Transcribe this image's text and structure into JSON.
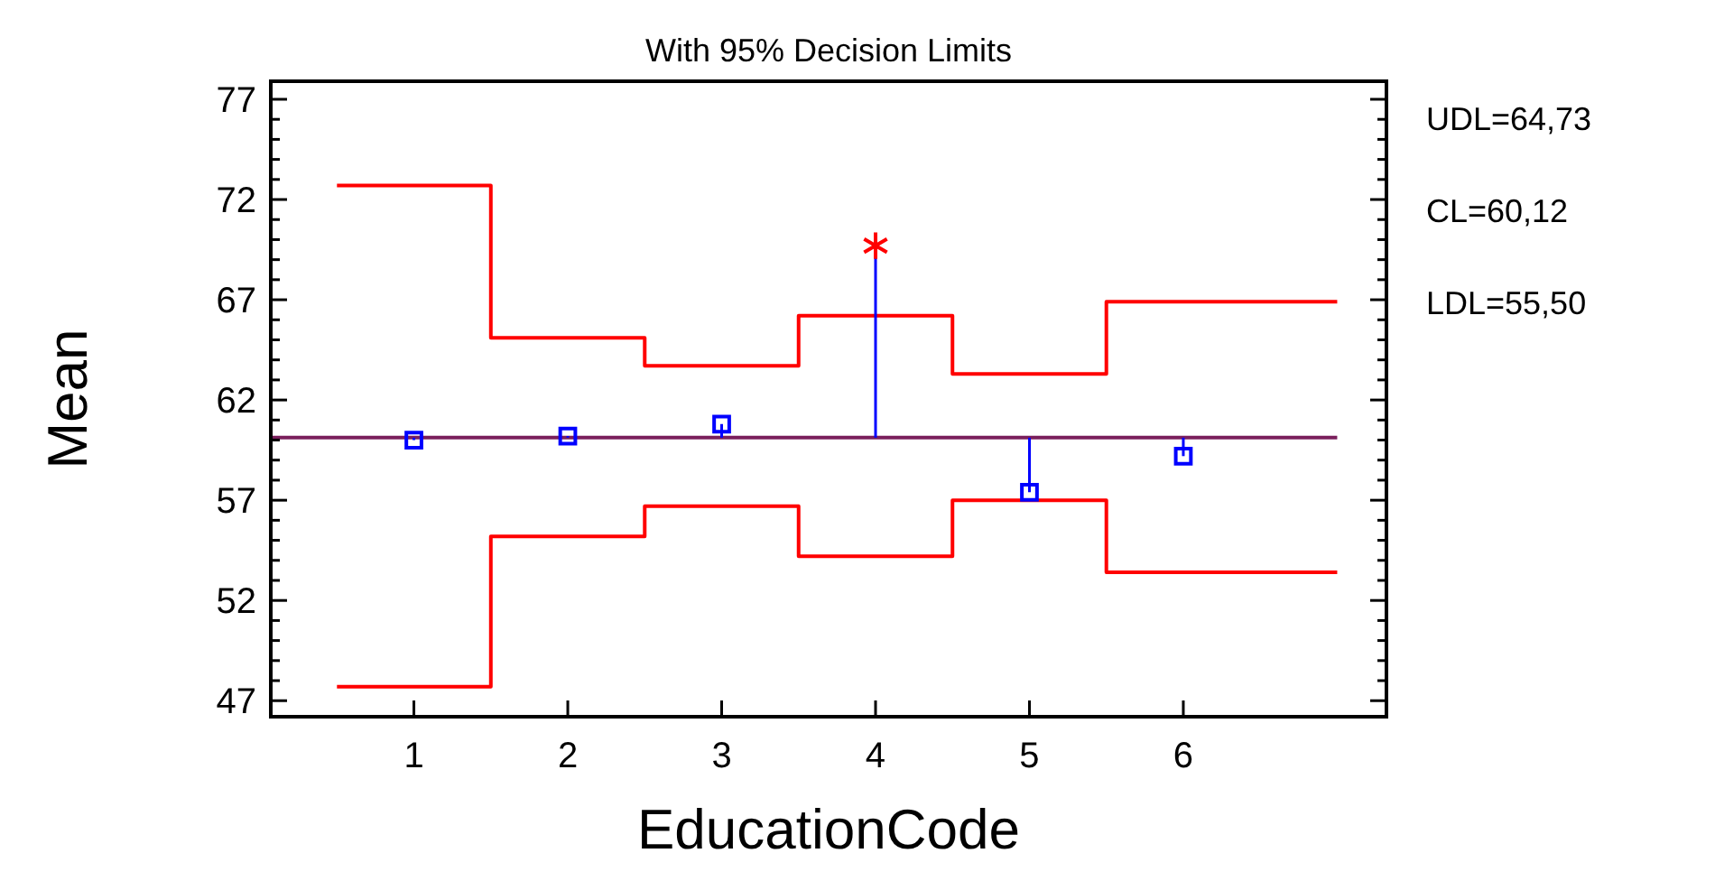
{
  "chart_data": {
    "type": "step",
    "title": "With 95% Decision Limits",
    "xlabel": "EducationCode",
    "ylabel": "Mean",
    "xlim": [
      0.07,
      7.32
    ],
    "xticks": [
      1,
      2,
      3,
      4,
      5,
      6
    ],
    "ylim": [
      46.2,
      77.9
    ],
    "yticks": [
      47,
      {
        "value": 48,
        "label": null
      },
      {
        "value": 49,
        "label": null
      },
      {
        "value": 50,
        "label": null
      },
      {
        "value": 51,
        "label": null
      },
      52,
      {
        "value": 53,
        "label": null
      },
      {
        "value": 54,
        "label": null
      },
      {
        "value": 55,
        "label": null
      },
      {
        "value": 56,
        "label": null
      },
      57,
      {
        "value": 58,
        "label": null
      },
      {
        "value": 59,
        "label": null
      },
      {
        "value": 60,
        "label": null
      },
      {
        "value": 61,
        "label": null
      },
      62,
      {
        "value": 63,
        "label": null
      },
      {
        "value": 64,
        "label": null
      },
      {
        "value": 65,
        "label": null
      },
      {
        "value": 66,
        "label": null
      },
      67,
      {
        "value": 68,
        "label": null
      },
      {
        "value": 69,
        "label": null
      },
      {
        "value": 70,
        "label": null
      },
      {
        "value": 71,
        "label": null
      },
      72,
      {
        "value": 73,
        "label": null
      },
      {
        "value": 74,
        "label": null
      },
      {
        "value": 75,
        "label": null
      },
      {
        "value": 76,
        "label": null
      },
      77
    ],
    "grid": false,
    "series": [
      {
        "color": "#ff0000",
        "x": [
          0.5,
          1.5,
          2.5,
          3.5,
          4.5,
          5.5,
          7.0
        ],
        "values": [
          72.7,
          65.1,
          63.7,
          66.2,
          63.3,
          66.9,
          66.9
        ]
      },
      {
        "color": "#ff0000",
        "x": [
          0.5,
          1.5,
          2.5,
          3.5,
          4.5,
          5.5,
          7.0
        ],
        "values": [
          47.7,
          55.2,
          56.7,
          54.2,
          57.0,
          53.4,
          53.4
        ]
      },
      {
        "type": "scatter",
        "color": "#0000ff",
        "marker": "square",
        "x": [
          1,
          2,
          3,
          5,
          6
        ],
        "values": [
          60.0,
          60.2,
          60.8,
          57.4,
          59.2
        ],
        "errors": [
          [
            60.0,
            60.12
          ],
          [
            60.12,
            60.2
          ],
          [
            60.12,
            60.8
          ],
          [
            57.4,
            60.12
          ],
          [
            59.2,
            60.12
          ]
        ]
      },
      {
        "type": "scatter",
        "color": "#ff0000",
        "marker": "cross",
        "x": [
          4
        ],
        "values": [
          69.7
        ],
        "errors": [
          [
            60.12,
            69.7
          ]
        ]
      }
    ],
    "ref_lines": [
      {
        "axis": "y",
        "value": 60.12,
        "color": "#7a1f5c"
      }
    ],
    "annotations": [
      "UDL=64,73",
      "CL=60,12",
      "LDL=55,50"
    ]
  }
}
